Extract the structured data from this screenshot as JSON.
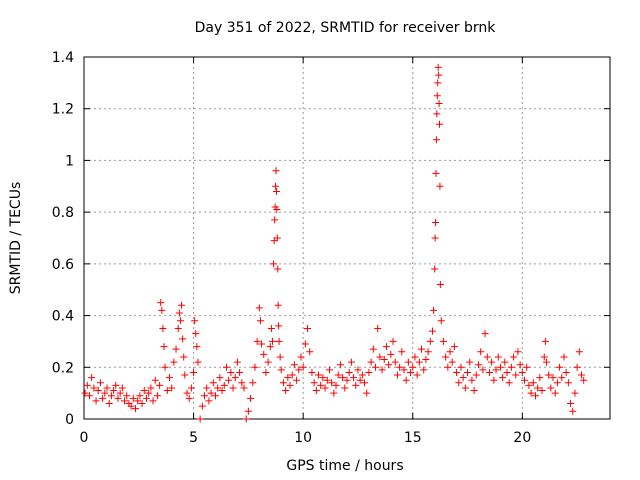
{
  "chart_data": {
    "type": "scatter",
    "title": "Day 351 of 2022, SRMTID for receiver brnk",
    "xlabel": "GPS time / hours",
    "ylabel": "SRMTID / TECUs",
    "xlim": [
      0,
      24
    ],
    "ylim": [
      0,
      1.4
    ],
    "xticks": [
      0,
      5,
      10,
      15,
      20
    ],
    "yticks": [
      0,
      0.2,
      0.4,
      0.6,
      0.8,
      1,
      1.2,
      1.4
    ],
    "xtick_labels": [
      "0",
      "5",
      "10",
      "15",
      "20"
    ],
    "ytick_labels": [
      "0",
      "0.2",
      "0.4",
      "0.6",
      "0.8",
      "1",
      "1.2",
      "1.4"
    ],
    "grid": true,
    "marker": "+",
    "color": "#ff0000",
    "series": [
      {
        "name": "SRMTID",
        "points": [
          [
            0.05,
            0.1
          ],
          [
            0.15,
            0.13
          ],
          [
            0.25,
            0.09
          ],
          [
            0.35,
            0.16
          ],
          [
            0.45,
            0.12
          ],
          [
            0.55,
            0.07
          ],
          [
            0.65,
            0.11
          ],
          [
            0.75,
            0.14
          ],
          [
            0.85,
            0.08
          ],
          [
            0.95,
            0.1
          ],
          [
            1.05,
            0.12
          ],
          [
            1.15,
            0.06
          ],
          [
            1.25,
            0.09
          ],
          [
            1.35,
            0.11
          ],
          [
            1.45,
            0.13
          ],
          [
            1.55,
            0.08
          ],
          [
            1.65,
            0.1
          ],
          [
            1.75,
            0.12
          ],
          [
            1.85,
            0.07
          ],
          [
            1.95,
            0.09
          ],
          [
            2.05,
            0.06
          ],
          [
            2.15,
            0.05
          ],
          [
            2.25,
            0.08
          ],
          [
            2.35,
            0.04
          ],
          [
            2.45,
            0.07
          ],
          [
            2.55,
            0.09
          ],
          [
            2.65,
            0.06
          ],
          [
            2.75,
            0.11
          ],
          [
            2.85,
            0.08
          ],
          [
            2.95,
            0.1
          ],
          [
            3.05,
            0.12
          ],
          [
            3.15,
            0.07
          ],
          [
            3.25,
            0.15
          ],
          [
            3.35,
            0.09
          ],
          [
            3.45,
            0.13
          ],
          [
            3.5,
            0.45
          ],
          [
            3.55,
            0.42
          ],
          [
            3.6,
            0.35
          ],
          [
            3.65,
            0.28
          ],
          [
            3.7,
            0.2
          ],
          [
            3.8,
            0.11
          ],
          [
            3.9,
            0.16
          ],
          [
            4.0,
            0.12
          ],
          [
            4.1,
            0.22
          ],
          [
            4.2,
            0.27
          ],
          [
            4.3,
            0.35
          ],
          [
            4.35,
            0.41
          ],
          [
            4.4,
            0.38
          ],
          [
            4.45,
            0.44
          ],
          [
            4.5,
            0.31
          ],
          [
            4.55,
            0.24
          ],
          [
            4.6,
            0.17
          ],
          [
            4.7,
            0.1
          ],
          [
            4.8,
            0.08
          ],
          [
            4.9,
            0.12
          ],
          [
            5.0,
            0.18
          ],
          [
            5.05,
            0.38
          ],
          [
            5.1,
            0.33
          ],
          [
            5.15,
            0.28
          ],
          [
            5.2,
            0.22
          ],
          [
            5.3,
            0.0
          ],
          [
            5.4,
            0.05
          ],
          [
            5.5,
            0.09
          ],
          [
            5.6,
            0.12
          ],
          [
            5.7,
            0.07
          ],
          [
            5.8,
            0.1
          ],
          [
            5.9,
            0.14
          ],
          [
            6.0,
            0.09
          ],
          [
            6.1,
            0.12
          ],
          [
            6.2,
            0.16
          ],
          [
            6.3,
            0.11
          ],
          [
            6.4,
            0.13
          ],
          [
            6.5,
            0.2
          ],
          [
            6.6,
            0.15
          ],
          [
            6.7,
            0.18
          ],
          [
            6.8,
            0.12
          ],
          [
            6.9,
            0.16
          ],
          [
            7.0,
            0.22
          ],
          [
            7.1,
            0.18
          ],
          [
            7.2,
            0.14
          ],
          [
            7.3,
            0.12
          ],
          [
            7.4,
            0.0
          ],
          [
            7.5,
            0.03
          ],
          [
            7.6,
            0.08
          ],
          [
            7.7,
            0.14
          ],
          [
            7.8,
            0.2
          ],
          [
            7.9,
            0.3
          ],
          [
            8.0,
            0.43
          ],
          [
            8.05,
            0.38
          ],
          [
            8.1,
            0.29
          ],
          [
            8.2,
            0.25
          ],
          [
            8.3,
            0.18
          ],
          [
            8.4,
            0.22
          ],
          [
            8.5,
            0.28
          ],
          [
            8.55,
            0.35
          ],
          [
            8.6,
            0.3
          ],
          [
            8.65,
            0.6
          ],
          [
            8.68,
            0.69
          ],
          [
            8.7,
            0.77
          ],
          [
            8.72,
            0.82
          ],
          [
            8.74,
            0.9
          ],
          [
            8.76,
            0.96
          ],
          [
            8.78,
            0.88
          ],
          [
            8.8,
            0.81
          ],
          [
            8.82,
            0.7
          ],
          [
            8.84,
            0.58
          ],
          [
            8.86,
            0.44
          ],
          [
            8.88,
            0.36
          ],
          [
            8.9,
            0.3
          ],
          [
            8.95,
            0.24
          ],
          [
            9.0,
            0.19
          ],
          [
            9.1,
            0.14
          ],
          [
            9.2,
            0.11
          ],
          [
            9.3,
            0.16
          ],
          [
            9.4,
            0.13
          ],
          [
            9.5,
            0.17
          ],
          [
            9.6,
            0.21
          ],
          [
            9.7,
            0.15
          ],
          [
            9.8,
            0.19
          ],
          [
            9.9,
            0.24
          ],
          [
            10.0,
            0.2
          ],
          [
            10.1,
            0.29
          ],
          [
            10.2,
            0.35
          ],
          [
            10.3,
            0.26
          ],
          [
            10.4,
            0.18
          ],
          [
            10.5,
            0.14
          ],
          [
            10.6,
            0.11
          ],
          [
            10.7,
            0.17
          ],
          [
            10.8,
            0.13
          ],
          [
            10.9,
            0.16
          ],
          [
            11.0,
            0.12
          ],
          [
            11.1,
            0.15
          ],
          [
            11.2,
            0.19
          ],
          [
            11.3,
            0.14
          ],
          [
            11.4,
            0.1
          ],
          [
            11.5,
            0.13
          ],
          [
            11.6,
            0.17
          ],
          [
            11.7,
            0.21
          ],
          [
            11.8,
            0.16
          ],
          [
            11.9,
            0.12
          ],
          [
            12.0,
            0.15
          ],
          [
            12.1,
            0.18
          ],
          [
            12.2,
            0.22
          ],
          [
            12.3,
            0.16
          ],
          [
            12.4,
            0.13
          ],
          [
            12.5,
            0.19
          ],
          [
            12.6,
            0.15
          ],
          [
            12.7,
            0.17
          ],
          [
            12.8,
            0.14
          ],
          [
            12.9,
            0.1
          ],
          [
            13.0,
            0.18
          ],
          [
            13.1,
            0.22
          ],
          [
            13.2,
            0.27
          ],
          [
            13.3,
            0.2
          ],
          [
            13.4,
            0.35
          ],
          [
            13.5,
            0.24
          ],
          [
            13.6,
            0.19
          ],
          [
            13.7,
            0.23
          ],
          [
            13.8,
            0.28
          ],
          [
            13.9,
            0.21
          ],
          [
            14.0,
            0.25
          ],
          [
            14.1,
            0.3
          ],
          [
            14.2,
            0.22
          ],
          [
            14.3,
            0.17
          ],
          [
            14.4,
            0.2
          ],
          [
            14.5,
            0.26
          ],
          [
            14.6,
            0.19
          ],
          [
            14.7,
            0.15
          ],
          [
            14.8,
            0.22
          ],
          [
            14.9,
            0.18
          ],
          [
            15.0,
            0.2
          ],
          [
            15.1,
            0.24
          ],
          [
            15.2,
            0.17
          ],
          [
            15.3,
            0.22
          ],
          [
            15.4,
            0.27
          ],
          [
            15.5,
            0.19
          ],
          [
            15.6,
            0.23
          ],
          [
            15.7,
            0.26
          ],
          [
            15.8,
            0.3
          ],
          [
            15.9,
            0.34
          ],
          [
            15.95,
            0.42
          ],
          [
            16.0,
            0.58
          ],
          [
            16.02,
            0.7
          ],
          [
            16.04,
            0.76
          ],
          [
            16.06,
            0.95
          ],
          [
            16.08,
            1.08
          ],
          [
            16.1,
            1.18
          ],
          [
            16.12,
            1.25
          ],
          [
            16.14,
            1.3
          ],
          [
            16.16,
            1.36
          ],
          [
            16.18,
            1.33
          ],
          [
            16.2,
            1.22
          ],
          [
            16.22,
            1.14
          ],
          [
            16.24,
            0.9
          ],
          [
            16.26,
            0.52
          ],
          [
            16.3,
            0.38
          ],
          [
            16.4,
            0.3
          ],
          [
            16.5,
            0.24
          ],
          [
            16.6,
            0.2
          ],
          [
            16.7,
            0.26
          ],
          [
            16.8,
            0.22
          ],
          [
            16.9,
            0.28
          ],
          [
            17.0,
            0.18
          ],
          [
            17.1,
            0.14
          ],
          [
            17.2,
            0.2
          ],
          [
            17.3,
            0.16
          ],
          [
            17.4,
            0.12
          ],
          [
            17.5,
            0.18
          ],
          [
            17.6,
            0.22
          ],
          [
            17.7,
            0.15
          ],
          [
            17.8,
            0.11
          ],
          [
            17.9,
            0.17
          ],
          [
            18.0,
            0.21
          ],
          [
            18.1,
            0.26
          ],
          [
            18.2,
            0.19
          ],
          [
            18.3,
            0.33
          ],
          [
            18.4,
            0.24
          ],
          [
            18.5,
            0.18
          ],
          [
            18.6,
            0.22
          ],
          [
            18.7,
            0.15
          ],
          [
            18.8,
            0.19
          ],
          [
            18.9,
            0.24
          ],
          [
            19.0,
            0.2
          ],
          [
            19.1,
            0.16
          ],
          [
            19.2,
            0.22
          ],
          [
            19.3,
            0.18
          ],
          [
            19.4,
            0.14
          ],
          [
            19.5,
            0.2
          ],
          [
            19.6,
            0.24
          ],
          [
            19.7,
            0.17
          ],
          [
            19.8,
            0.26
          ],
          [
            19.9,
            0.21
          ],
          [
            20.0,
            0.18
          ],
          [
            20.1,
            0.15
          ],
          [
            20.2,
            0.2
          ],
          [
            20.3,
            0.13
          ],
          [
            20.4,
            0.1
          ],
          [
            20.5,
            0.14
          ],
          [
            20.6,
            0.09
          ],
          [
            20.7,
            0.12
          ],
          [
            20.8,
            0.16
          ],
          [
            20.9,
            0.11
          ],
          [
            21.0,
            0.24
          ],
          [
            21.05,
            0.3
          ],
          [
            21.1,
            0.22
          ],
          [
            21.2,
            0.17
          ],
          [
            21.3,
            0.12
          ],
          [
            21.4,
            0.16
          ],
          [
            21.5,
            0.1
          ],
          [
            21.6,
            0.14
          ],
          [
            21.7,
            0.2
          ],
          [
            21.8,
            0.16
          ],
          [
            21.9,
            0.24
          ],
          [
            22.0,
            0.18
          ],
          [
            22.1,
            0.14
          ],
          [
            22.2,
            0.06
          ],
          [
            22.3,
            0.03
          ],
          [
            22.4,
            0.1
          ],
          [
            22.5,
            0.2
          ],
          [
            22.6,
            0.26
          ],
          [
            22.7,
            0.17
          ],
          [
            22.8,
            0.15
          ]
        ]
      }
    ]
  }
}
